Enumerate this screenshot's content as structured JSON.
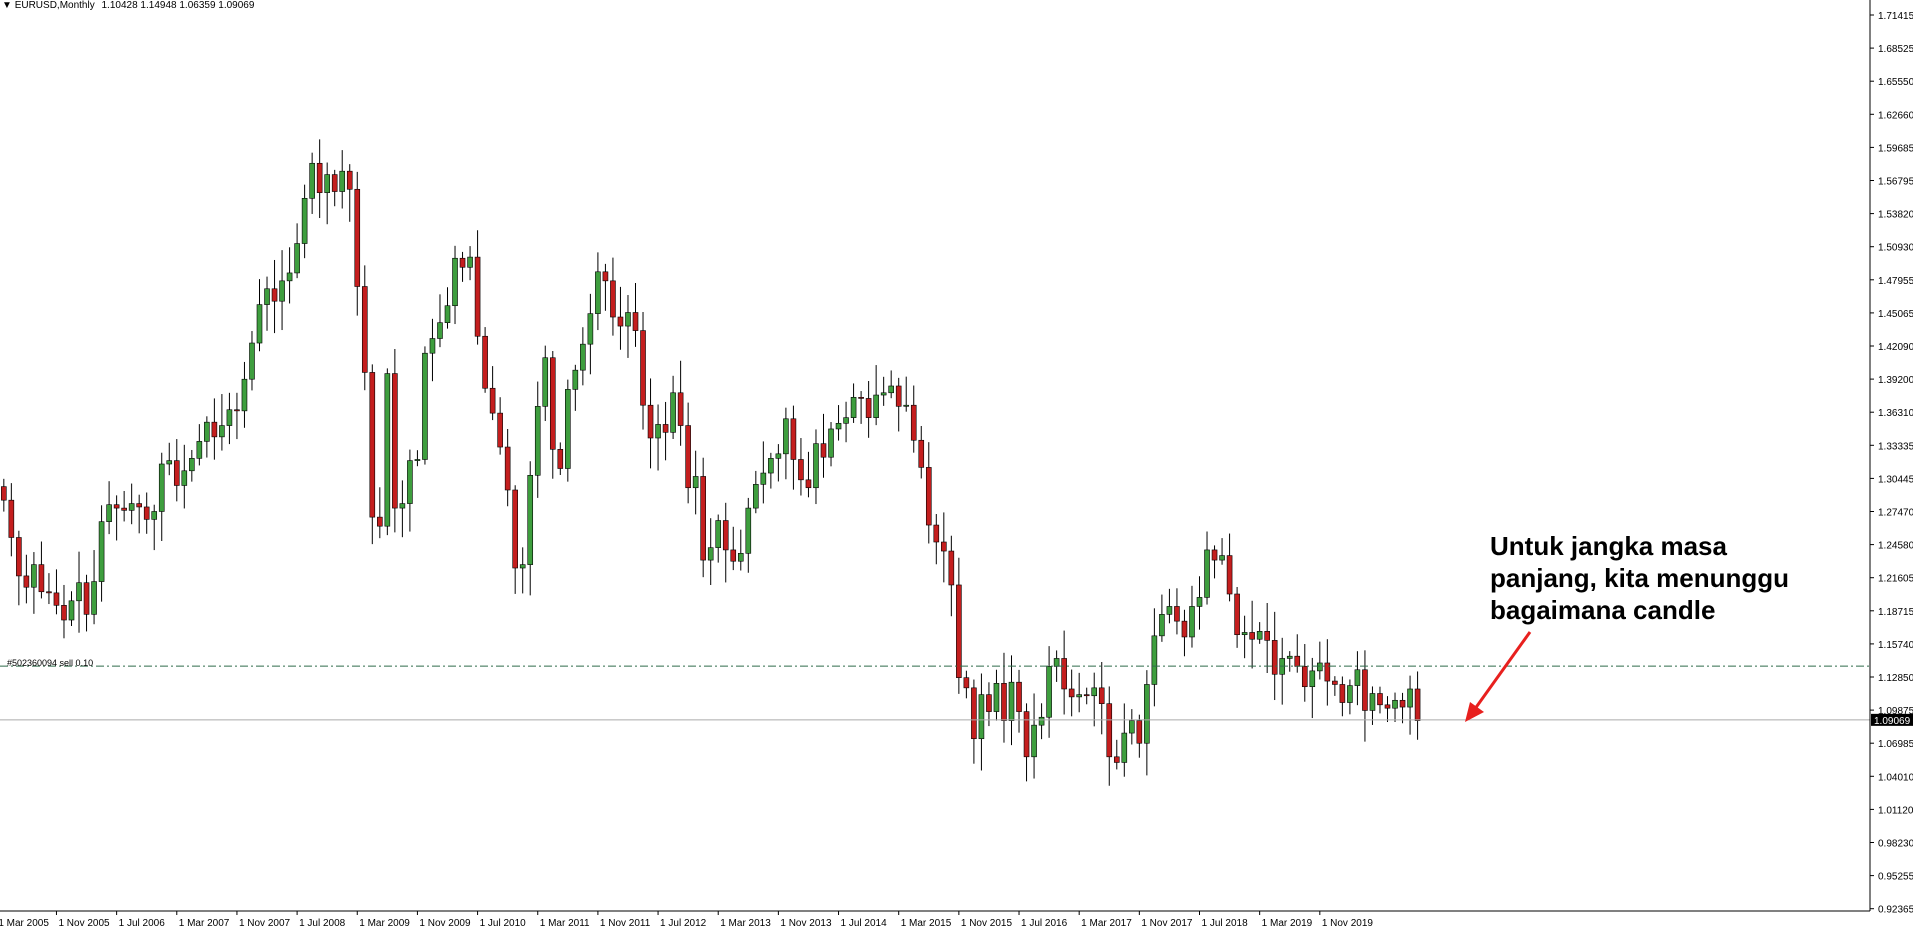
{
  "header": {
    "symbol_timeframe": "EURUSD,Monthly",
    "ohlc": "1.10428 1.14948 1.06359 1.09069"
  },
  "trade_line": {
    "label": "#502360094 sell 0.10",
    "price": 1.1382
  },
  "current_price": {
    "label": "1.09069",
    "value": 1.09069
  },
  "annotation": {
    "lines": [
      "Untuk jangka masa",
      "panjang, kita menunggu",
      "bagaimana candle"
    ]
  },
  "colors": {
    "bull": "#3e9e3e",
    "bear": "#c41e1e",
    "wick": "#000000",
    "trade_line": "#2e6b4a",
    "price_line": "#aaaaaa",
    "arrow": "#e8201e"
  },
  "chart_data": {
    "type": "candlestick",
    "symbol": "EURUSD",
    "timeframe": "Monthly",
    "y_ticks": [
      "1.71415",
      "1.68525",
      "1.65550",
      "1.62660",
      "1.59685",
      "1.56795",
      "1.53820",
      "1.50930",
      "1.47955",
      "1.45065",
      "1.42090",
      "1.39200",
      "1.36310",
      "1.33335",
      "1.30445",
      "1.27470",
      "1.24580",
      "1.21605",
      "1.18715",
      "1.15740",
      "1.12850",
      "1.09875",
      "1.06985",
      "1.04010",
      "1.01120",
      "0.98230",
      "0.95255",
      "0.92365"
    ],
    "x_ticks": [
      "1 Mar 2005",
      "1 Nov 2005",
      "1 Jul 2006",
      "1 Mar 2007",
      "1 Nov 2007",
      "1 Jul 2008",
      "1 Mar 2009",
      "1 Nov 2009",
      "1 Jul 2010",
      "1 Mar 2011",
      "1 Nov 2011",
      "1 Jul 2012",
      "1 Mar 2013",
      "1 Nov 2013",
      "1 Jul 2014",
      "1 Mar 2015",
      "1 Nov 2015",
      "1 Jul 2016",
      "1 Mar 2017",
      "1 Nov 2017",
      "1 Jul 2018",
      "1 Mar 2019",
      "1 Nov 2019"
    ],
    "ylim": [
      0.917,
      1.722
    ],
    "x_start": "2005-03",
    "close_series": [
      1.297,
      1.285,
      1.252,
      1.218,
      1.208,
      1.228,
      1.204,
      1.203,
      1.192,
      1.179,
      1.196,
      1.212,
      1.184,
      1.213,
      1.266,
      1.281,
      1.278,
      1.276,
      1.282,
      1.279,
      1.268,
      1.275,
      1.317,
      1.32,
      1.298,
      1.311,
      1.322,
      1.337,
      1.354,
      1.341,
      1.351,
      1.365,
      1.364,
      1.392,
      1.424,
      1.458,
      1.472,
      1.461,
      1.479,
      1.486,
      1.512,
      1.552,
      1.583,
      1.557,
      1.573,
      1.558,
      1.576,
      1.56,
      1.474,
      1.398,
      1.27,
      1.262,
      1.397,
      1.278,
      1.282,
      1.32,
      1.321,
      1.415,
      1.428,
      1.442,
      1.457,
      1.499,
      1.491,
      1.5,
      1.43,
      1.384,
      1.362,
      1.332,
      1.294,
      1.225,
      1.228,
      1.307,
      1.368,
      1.411,
      1.33,
      1.313,
      1.383,
      1.4,
      1.423,
      1.45,
      1.487,
      1.479,
      1.447,
      1.439,
      1.451,
      1.435,
      1.369,
      1.34,
      1.352,
      1.345,
      1.38,
      1.351,
      1.296,
      1.306,
      1.232,
      1.243,
      1.267,
      1.241,
      1.231,
      1.238,
      1.278,
      1.299,
      1.309,
      1.322,
      1.326,
      1.357,
      1.321,
      1.303,
      1.296,
      1.335,
      1.323,
      1.348,
      1.353,
      1.358,
      1.376,
      1.375,
      1.358,
      1.378,
      1.38,
      1.386,
      1.368,
      1.369,
      1.338,
      1.314,
      1.263,
      1.248,
      1.24,
      1.21,
      1.128,
      1.119,
      1.074,
      1.113,
      1.098,
      1.123,
      1.09,
      1.124,
      1.098,
      1.058,
      1.086,
      1.093,
      1.138,
      1.145,
      1.118,
      1.111,
      1.113,
      1.112,
      1.119,
      1.105,
      1.058,
      1.053,
      1.079,
      1.09,
      1.07,
      1.122,
      1.165,
      1.184,
      1.191,
      1.178,
      1.164,
      1.191,
      1.199,
      1.241,
      1.232,
      1.236,
      1.202,
      1.166,
      1.168,
      1.162,
      1.169,
      1.161,
      1.131,
      1.145,
      1.147,
      1.138,
      1.12,
      1.134,
      1.141,
      1.125,
      1.122,
      1.106,
      1.121,
      1.135,
      1.099,
      1.114,
      1.104,
      1.101,
      1.108,
      1.102,
      1.118,
      1.09
    ],
    "current_close": 1.09069
  }
}
